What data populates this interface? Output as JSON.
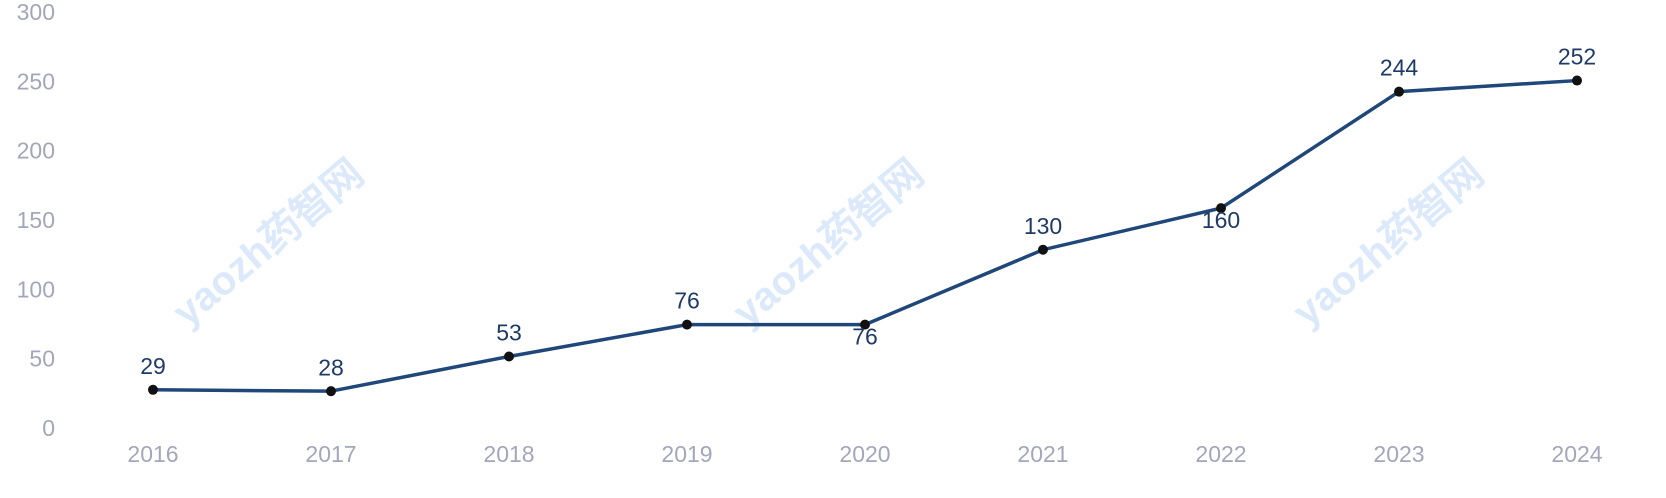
{
  "chart_data": {
    "type": "line",
    "categories": [
      "2016",
      "2017",
      "2018",
      "2019",
      "2020",
      "2021",
      "2022",
      "2023",
      "2024"
    ],
    "values": [
      29,
      28,
      53,
      76,
      76,
      130,
      160,
      244,
      252
    ],
    "value_label_positions": [
      "above",
      "above",
      "above",
      "above",
      "below",
      "above",
      "below",
      "above",
      "above"
    ],
    "color": "#1f477a",
    "marker_color": "#111111",
    "ylim": [
      0,
      300
    ],
    "yticks": [
      0,
      50,
      100,
      150,
      200,
      250,
      300
    ],
    "grid": false,
    "watermark": "yaozh药智网"
  }
}
